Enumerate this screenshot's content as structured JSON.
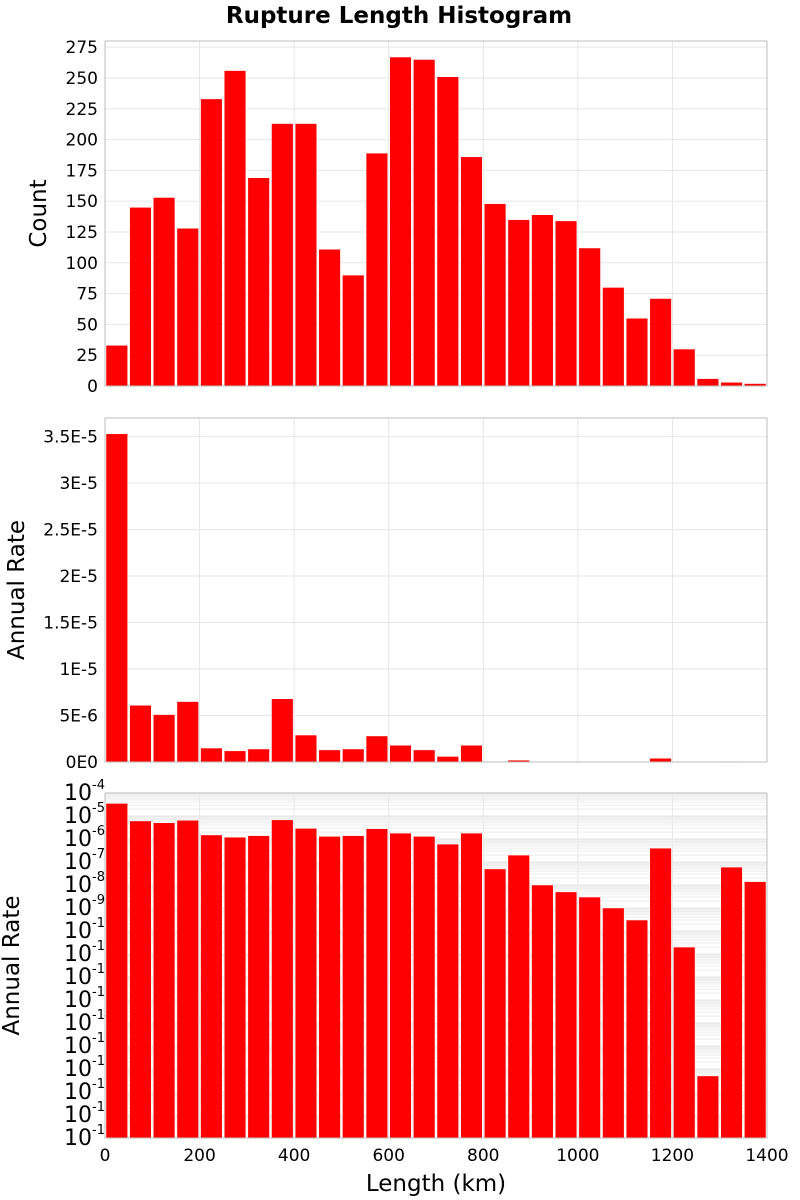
{
  "title": "Rupture Length Histogram",
  "colors": {
    "bar": "#ff0000",
    "bar_edge": "#ffffff",
    "grid": "#e6e6e6",
    "border": "#bdbdbd"
  },
  "x_axis": {
    "label": "Length (km)",
    "range": [
      0,
      1400
    ],
    "ticks": [
      0,
      200,
      400,
      600,
      800,
      1000,
      1200,
      1400
    ],
    "tick_labels": [
      "0",
      "200",
      "400",
      "600",
      "800",
      "1000",
      "1200",
      "1400"
    ]
  },
  "chart_data": [
    {
      "type": "bar",
      "panel": "top",
      "ylabel": "Count",
      "ylim": [
        0,
        280
      ],
      "yscale": "linear",
      "yticks": [
        0,
        25,
        50,
        75,
        100,
        125,
        150,
        175,
        200,
        225,
        250,
        275
      ],
      "ytick_labels": [
        "0",
        "25",
        "50",
        "75",
        "100",
        "125",
        "150",
        "175",
        "200",
        "225",
        "250",
        "275"
      ],
      "grid": true,
      "bin_width": 50,
      "x": [
        0,
        50,
        100,
        150,
        200,
        250,
        300,
        350,
        400,
        450,
        500,
        550,
        600,
        650,
        700,
        750,
        800,
        850,
        900,
        950,
        1000,
        1050,
        1100,
        1150,
        1200,
        1250,
        1300,
        1350
      ],
      "values": [
        33,
        145,
        153,
        128,
        233,
        256,
        169,
        213,
        213,
        111,
        90,
        189,
        267,
        265,
        251,
        186,
        148,
        135,
        139,
        134,
        112,
        80,
        55,
        71,
        30,
        6,
        3,
        2
      ]
    },
    {
      "type": "bar",
      "panel": "middle",
      "ylabel": "Annual Rate",
      "ylim": [
        0,
        3.7e-05
      ],
      "yscale": "linear",
      "yticks": [
        0,
        5e-06,
        1e-05,
        1.5e-05,
        2e-05,
        2.5e-05,
        3e-05,
        3.5e-05
      ],
      "ytick_labels": [
        "0E0",
        "5E-6",
        "1E-5",
        "1.5E-5",
        "2E-5",
        "2.5E-5",
        "3E-5",
        "3.5E-5"
      ],
      "grid": true,
      "bin_width": 50,
      "x": [
        0,
        50,
        100,
        150,
        200,
        250,
        300,
        350,
        400,
        450,
        500,
        550,
        600,
        650,
        700,
        750,
        800,
        850,
        900,
        950,
        1000,
        1050,
        1100,
        1150,
        1200,
        1250,
        1300,
        1350
      ],
      "values": [
        3.53e-05,
        6.1e-06,
        5.1e-06,
        6.5e-06,
        1.5e-06,
        1.2e-06,
        1.4e-06,
        6.8e-06,
        2.9e-06,
        1.3e-06,
        1.4e-06,
        2.8e-06,
        1.8e-06,
        1.3e-06,
        6e-07,
        1.8e-06,
        5e-08,
        2e-07,
        1e-08,
        5e-09,
        3e-09,
        1e-09,
        3e-10,
        4e-07,
        2e-11,
        5e-17,
        6e-08,
        1.4e-08
      ]
    },
    {
      "type": "bar",
      "panel": "bottom",
      "ylabel": "Annual Rate",
      "ylim": [
        1e-19,
        0.0001
      ],
      "yscale": "log",
      "yticks_exponents": [
        -4,
        -5,
        -6,
        -7,
        -8,
        -9,
        -10,
        -11,
        -12,
        -13,
        -14,
        -15,
        -16,
        -17,
        -18,
        -19
      ],
      "ytick_base": "10",
      "grid": true,
      "bin_width": 50,
      "x": [
        0,
        50,
        100,
        150,
        200,
        250,
        300,
        350,
        400,
        450,
        500,
        550,
        600,
        650,
        700,
        750,
        800,
        850,
        900,
        950,
        1000,
        1050,
        1100,
        1150,
        1200,
        1250,
        1300,
        1350
      ],
      "values": [
        3.53e-05,
        6.1e-06,
        5.1e-06,
        6.5e-06,
        1.5e-06,
        1.2e-06,
        1.4e-06,
        6.8e-06,
        2.9e-06,
        1.3e-06,
        1.4e-06,
        2.8e-06,
        1.8e-06,
        1.3e-06,
        6e-07,
        1.8e-06,
        5e-08,
        2e-07,
        1e-08,
        5e-09,
        3e-09,
        1e-09,
        3e-10,
        4e-07,
        2e-11,
        5e-17,
        6e-08,
        1.4e-08
      ]
    }
  ]
}
